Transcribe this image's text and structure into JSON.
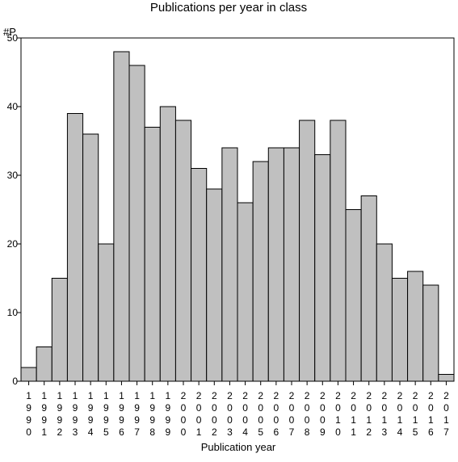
{
  "chart_data": {
    "type": "bar",
    "title": "Publications per year in class",
    "xlabel": "Publication year",
    "ylabel": "#P",
    "categories": [
      "1990",
      "1991",
      "1992",
      "1993",
      "1994",
      "1995",
      "1996",
      "1997",
      "1998",
      "1999",
      "2000",
      "2001",
      "2002",
      "2003",
      "2004",
      "2005",
      "2006",
      "2007",
      "2008",
      "2009",
      "2010",
      "2011",
      "2012",
      "2013",
      "2014",
      "2015",
      "2016",
      "2017"
    ],
    "values": [
      2,
      5,
      15,
      39,
      36,
      20,
      48,
      46,
      37,
      40,
      38,
      31,
      28,
      34,
      26,
      32,
      34,
      34,
      38,
      33,
      38,
      25,
      27,
      20,
      15,
      16,
      14,
      1
    ],
    "ylim": [
      0,
      50
    ],
    "yticks": [
      0,
      10,
      20,
      30,
      40,
      50
    ],
    "grid": false,
    "legend": "none",
    "bar_color": "#c0c0c0",
    "edge_color": "#000000"
  }
}
